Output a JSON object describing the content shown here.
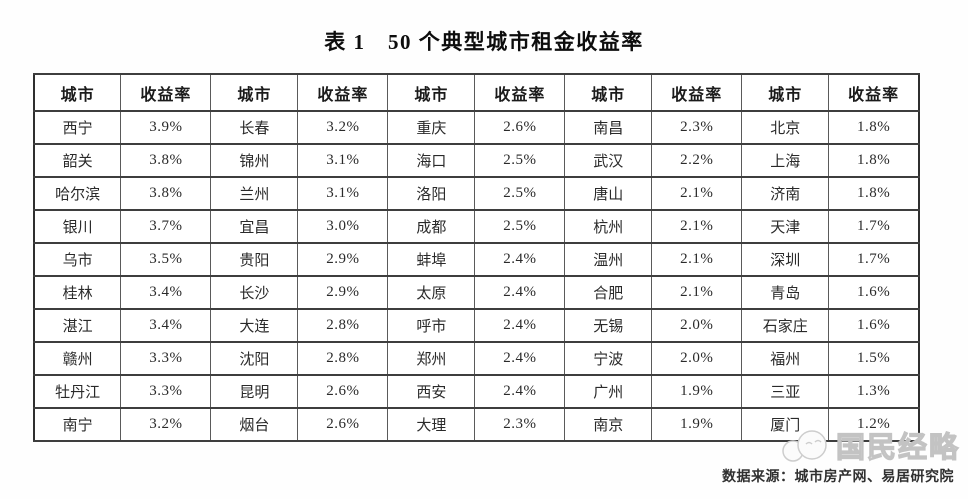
{
  "title": "表 1　50 个典型城市租金收益率",
  "table": {
    "header": [
      "城市",
      "收益率",
      "城市",
      "收益率",
      "城市",
      "收益率",
      "城市",
      "收益率",
      "城市",
      "收益率"
    ],
    "rows": [
      [
        "西宁",
        "3.9%",
        "长春",
        "3.2%",
        "重庆",
        "2.6%",
        "南昌",
        "2.3%",
        "北京",
        "1.8%"
      ],
      [
        "韶关",
        "3.8%",
        "锦州",
        "3.1%",
        "海口",
        "2.5%",
        "武汉",
        "2.2%",
        "上海",
        "1.8%"
      ],
      [
        "哈尔滨",
        "3.8%",
        "兰州",
        "3.1%",
        "洛阳",
        "2.5%",
        "唐山",
        "2.1%",
        "济南",
        "1.8%"
      ],
      [
        "银川",
        "3.7%",
        "宜昌",
        "3.0%",
        "成都",
        "2.5%",
        "杭州",
        "2.1%",
        "天津",
        "1.7%"
      ],
      [
        "乌市",
        "3.5%",
        "贵阳",
        "2.9%",
        "蚌埠",
        "2.4%",
        "温州",
        "2.1%",
        "深圳",
        "1.7%"
      ],
      [
        "桂林",
        "3.4%",
        "长沙",
        "2.9%",
        "太原",
        "2.4%",
        "合肥",
        "2.1%",
        "青岛",
        "1.6%"
      ],
      [
        "湛江",
        "3.4%",
        "大连",
        "2.8%",
        "呼市",
        "2.4%",
        "无锡",
        "2.0%",
        "石家庄",
        "1.6%"
      ],
      [
        "赣州",
        "3.3%",
        "沈阳",
        "2.8%",
        "郑州",
        "2.4%",
        "宁波",
        "2.0%",
        "福州",
        "1.5%"
      ],
      [
        "牡丹江",
        "3.3%",
        "昆明",
        "2.6%",
        "西安",
        "2.4%",
        "广州",
        "1.9%",
        "三亚",
        "1.3%"
      ],
      [
        "南宁",
        "3.2%",
        "烟台",
        "2.6%",
        "大理",
        "2.3%",
        "南京",
        "1.9%",
        "厦门",
        "1.2%"
      ]
    ]
  },
  "watermark": {
    "text": "国民经略"
  },
  "footer": {
    "source_label": "数据来源：城市房产网、易居研究院"
  },
  "colors": {
    "table_border": "#2f2f2f",
    "cell_text": "#2a2a2a",
    "watermark_gray": "#c3c3c3",
    "background": "#fefefe"
  }
}
